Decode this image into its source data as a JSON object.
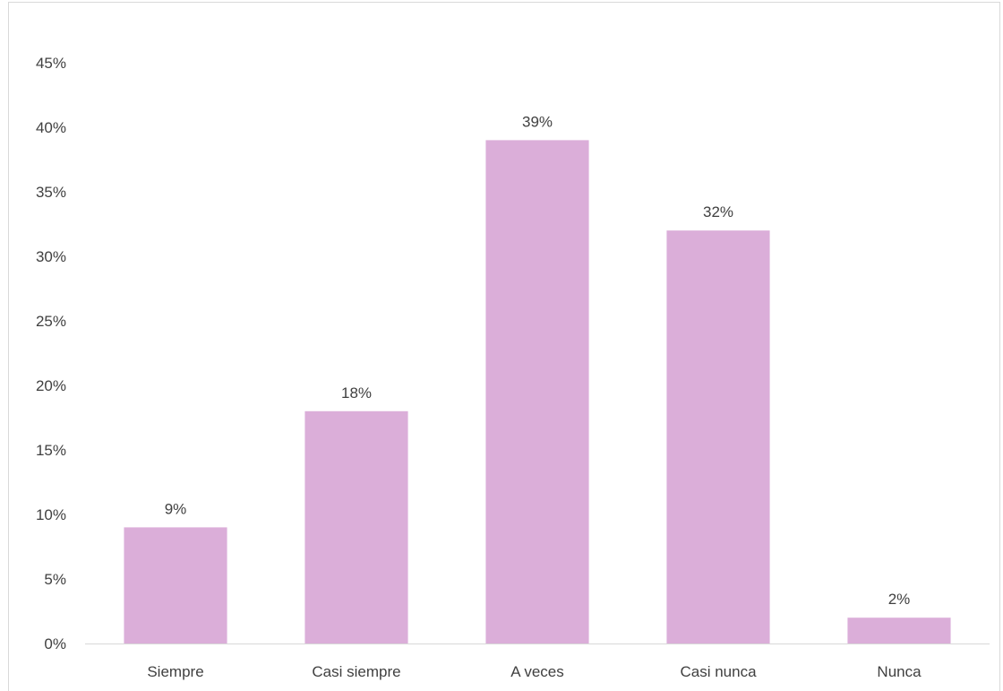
{
  "chart_data": {
    "type": "bar",
    "categories": [
      "Siempre",
      "Casi siempre",
      "A veces",
      "Casi nunca",
      "Nunca"
    ],
    "values": [
      9,
      18,
      39,
      32,
      2
    ],
    "data_labels": [
      "9%",
      "18%",
      "39%",
      "32%",
      "2%"
    ],
    "y_tick_values": [
      0,
      5,
      10,
      15,
      20,
      25,
      30,
      35,
      40,
      45
    ],
    "y_tick_labels": [
      "0%",
      "5%",
      "10%",
      "15%",
      "20%",
      "25%",
      "30%",
      "35%",
      "40%",
      "45%"
    ],
    "ylim": [
      0,
      45
    ],
    "title": "",
    "xlabel": "",
    "ylabel": "",
    "grid": false,
    "legend": "none",
    "colors": {
      "bar": "#dbaed9",
      "axis": "#d9d9d9",
      "text": "#404040"
    }
  }
}
